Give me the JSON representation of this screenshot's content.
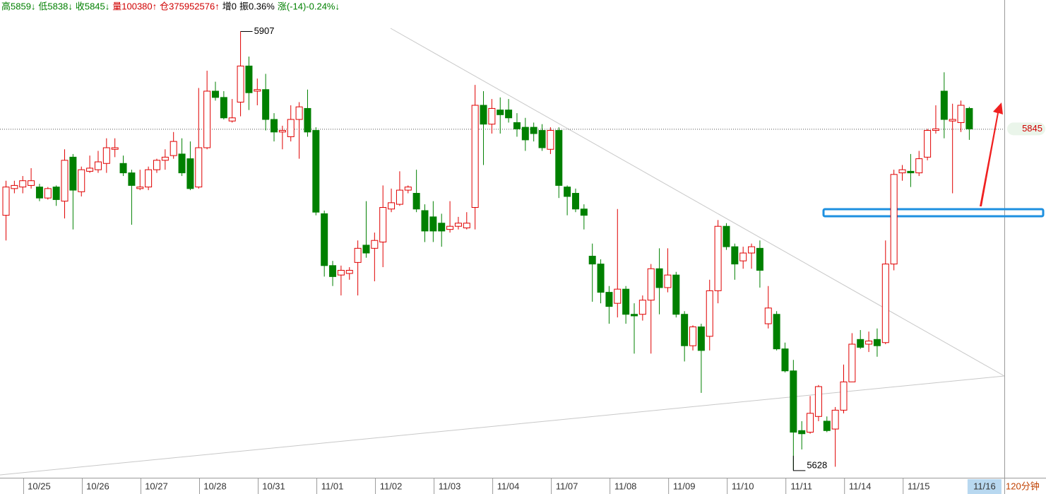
{
  "header": [
    {
      "text": "高5859↓",
      "color": "#008000"
    },
    {
      "text": "低5838↓",
      "color": "#008000"
    },
    {
      "text": "收5845↓",
      "color": "#008000"
    },
    {
      "text": "量100380↑",
      "color": "#d00000"
    },
    {
      "text": "仓375952576↑",
      "color": "#d00000"
    },
    {
      "text": "增0",
      "color": "#000000"
    },
    {
      "text": "振0.36%",
      "color": "#000000"
    },
    {
      "text": "涨(-14)-0.24%↓",
      "color": "#008000"
    }
  ],
  "chart_data": {
    "type": "candlestick",
    "period": "120分钟",
    "up_color": "#e00000",
    "down_color": "#008000",
    "ylim": [
      5623,
      5927
    ],
    "high_marker": 5907,
    "low_marker": 5628,
    "last_price": 5845,
    "categories": [
      null,
      null,
      null,
      null,
      "10/25",
      null,
      null,
      null,
      null,
      null,
      null,
      "10/26",
      null,
      null,
      null,
      null,
      null,
      null,
      "10/27",
      null,
      null,
      null,
      null,
      null,
      null,
      "10/28",
      null,
      null,
      null,
      null,
      null,
      null,
      "10/31",
      null,
      null,
      null,
      null,
      null,
      null,
      "11/01",
      null,
      null,
      null,
      null,
      null,
      null,
      "11/02",
      null,
      null,
      null,
      null,
      null,
      null,
      "11/03",
      null,
      null,
      null,
      null,
      null,
      null,
      "11/04",
      null,
      null,
      null,
      null,
      null,
      null,
      "11/07",
      null,
      null,
      null,
      null,
      null,
      null,
      "11/08",
      null,
      null,
      null,
      null,
      null,
      null,
      "11/09",
      null,
      null,
      null,
      null,
      null,
      null,
      "11/10",
      null,
      null,
      null,
      null,
      null,
      null,
      "11/11",
      null,
      null,
      null,
      null,
      null,
      null,
      "11/14",
      null,
      null,
      null,
      null,
      null,
      null,
      "11/15",
      null,
      null,
      null,
      null,
      null,
      "11/16"
    ],
    "open": [
      5790,
      5807,
      5808,
      5809,
      5808,
      5801,
      5808,
      5799,
      5827,
      5805,
      5818,
      5819,
      5823,
      5832,
      5823,
      5817,
      5807,
      5808,
      5819,
      5825,
      5828,
      5829,
      5826,
      5808,
      5833,
      5869,
      5865,
      5850,
      5862,
      5885,
      5869,
      5870,
      5851,
      5843,
      5840,
      5851,
      5858,
      5844,
      5791,
      5758,
      5752,
      5753,
      5760,
      5771,
      5769,
      5773,
      5794,
      5797,
      5806,
      5804,
      5793,
      5789,
      5785,
      5781,
      5783,
      5782,
      5795,
      5860,
      5848,
      5857,
      5857,
      5849,
      5846,
      5846,
      5844,
      5832,
      5844,
      5808,
      5804,
      5794,
      5764,
      5759,
      5741,
      5734,
      5743,
      5727,
      5727,
      5736,
      5756,
      5744,
      5752,
      5727,
      5707,
      5719,
      5713,
      5742,
      5783,
      5770,
      5761,
      5766,
      5769,
      5721,
      5727,
      5705,
      5691,
      5653,
      5652,
      5662,
      5659,
      5654,
      5666,
      5684,
      5711,
      5708,
      5711,
      5709,
      5759,
      5817,
      5818,
      5817,
      5827,
      5844,
      5869,
      5850,
      5849,
      5858
    ],
    "high": [
      5812,
      5812,
      5815,
      5820,
      5810,
      5808,
      5809,
      5832,
      5829,
      5821,
      5828,
      5831,
      5839,
      5839,
      5828,
      5819,
      5819,
      5821,
      5826,
      5832,
      5843,
      5839,
      5837,
      5871,
      5882,
      5875,
      5869,
      5864,
      5907,
      5891,
      5877,
      5880,
      5855,
      5847,
      5860,
      5862,
      5870,
      5846,
      5793,
      5761,
      5758,
      5757,
      5774,
      5799,
      5779,
      5809,
      5807,
      5818,
      5809,
      5819,
      5797,
      5799,
      5791,
      5799,
      5789,
      5792,
      5873,
      5869,
      5864,
      5865,
      5864,
      5855,
      5852,
      5849,
      5848,
      5846,
      5846,
      5809,
      5807,
      5797,
      5772,
      5762,
      5745,
      5794,
      5745,
      5734,
      5739,
      5759,
      5769,
      5769,
      5754,
      5729,
      5720,
      5721,
      5749,
      5787,
      5785,
      5772,
      5770,
      5772,
      5774,
      5745,
      5729,
      5709,
      5698,
      5659,
      5675,
      5682,
      5662,
      5668,
      5695,
      5715,
      5717,
      5716,
      5718,
      5774,
      5819,
      5822,
      5829,
      5831,
      5845,
      5860,
      5881,
      5861,
      5863,
      5859
    ],
    "low": [
      5774,
      5804,
      5804,
      5807,
      5799,
      5800,
      5796,
      5788,
      5781,
      5802,
      5817,
      5817,
      5817,
      5827,
      5815,
      5784,
      5806,
      5806,
      5817,
      5819,
      5826,
      5815,
      5806,
      5807,
      5832,
      5863,
      5851,
      5849,
      5853,
      5857,
      5860,
      5844,
      5837,
      5832,
      5837,
      5826,
      5840,
      5790,
      5751,
      5745,
      5739,
      5749,
      5739,
      5763,
      5748,
      5757,
      5792,
      5796,
      5804,
      5792,
      5773,
      5773,
      5770,
      5779,
      5781,
      5781,
      5781,
      5822,
      5842,
      5842,
      5849,
      5840,
      5831,
      5837,
      5831,
      5829,
      5801,
      5790,
      5792,
      5781,
      5735,
      5734,
      5721,
      5725,
      5721,
      5702,
      5723,
      5702,
      5727,
      5741,
      5725,
      5697,
      5704,
      5677,
      5704,
      5734,
      5768,
      5749,
      5756,
      5756,
      5744,
      5718,
      5704,
      5690,
      5628,
      5641,
      5651,
      5659,
      5652,
      5630,
      5664,
      5684,
      5705,
      5703,
      5700,
      5708,
      5755,
      5812,
      5808,
      5815,
      5825,
      5842,
      5839,
      5804,
      5843,
      5838
    ],
    "close": [
      5808,
      5809,
      5812,
      5812,
      5801,
      5807,
      5800,
      5825,
      5806,
      5819,
      5820,
      5824,
      5833,
      5833,
      5817,
      5809,
      5808,
      5819,
      5825,
      5827,
      5837,
      5817,
      5807,
      5833,
      5869,
      5865,
      5852,
      5852,
      5885,
      5868,
      5870,
      5851,
      5843,
      5844,
      5851,
      5859,
      5843,
      5792,
      5758,
      5751,
      5755,
      5755,
      5769,
      5766,
      5774,
      5795,
      5798,
      5806,
      5808,
      5794,
      5780,
      5780,
      5780,
      5783,
      5785,
      5785,
      5860,
      5848,
      5858,
      5854,
      5852,
      5845,
      5838,
      5842,
      5833,
      5844,
      5809,
      5802,
      5794,
      5790,
      5759,
      5741,
      5732,
      5743,
      5727,
      5726,
      5736,
      5756,
      5744,
      5752,
      5727,
      5707,
      5719,
      5704,
      5742,
      5783,
      5770,
      5759,
      5766,
      5770,
      5755,
      5731,
      5705,
      5691,
      5652,
      5651,
      5664,
      5681,
      5653,
      5666,
      5684,
      5708,
      5706,
      5710,
      5707,
      5759,
      5816,
      5819,
      5817,
      5826,
      5844,
      5845,
      5851,
      5851,
      5860,
      5845
    ]
  }
}
